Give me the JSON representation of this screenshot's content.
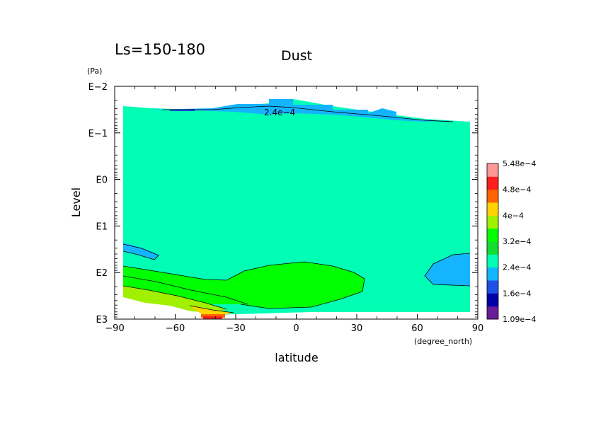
{
  "header": {
    "period_label": "Ls=150-180",
    "title": "Dust"
  },
  "chart_data": {
    "type": "heatmap",
    "title": "Dust",
    "subtitle": "Ls=150-180",
    "xlabel": "latitude",
    "xunit": "(degree_north)",
    "ylabel": "Level",
    "yunit": "(Pa)",
    "xlim": [
      -90,
      90
    ],
    "ylim": [
      1000,
      0.01
    ],
    "yscale": "log",
    "x_ticks": [
      {
        "value": -90,
        "label": "−90"
      },
      {
        "value": -60,
        "label": "−60"
      },
      {
        "value": -30,
        "label": "−30"
      },
      {
        "value": 0,
        "label": "0"
      },
      {
        "value": 30,
        "label": "30"
      },
      {
        "value": 60,
        "label": "60"
      },
      {
        "value": 90,
        "label": "90"
      }
    ],
    "y_ticks": [
      {
        "value": 0.01,
        "label": "E−2"
      },
      {
        "value": 0.1,
        "label": "E−1"
      },
      {
        "value": 1,
        "label": "E0"
      },
      {
        "value": 10,
        "label": "E1"
      },
      {
        "value": 100,
        "label": "E2"
      },
      {
        "value": 1000,
        "label": "E3"
      }
    ],
    "colorbar": {
      "levels": [
        0.000109,
        0.00016,
        0.00024,
        0.00032,
        0.0004,
        0.00048,
        0.000548
      ],
      "labels": [
        "1.09e−4",
        "1.6e−4",
        "2.4e−4",
        "3.2e−4",
        "4e−4",
        "4.8e−4",
        "5.48e−4"
      ],
      "colors": [
        "#6a1b9a",
        "#0000a8",
        "#1e50e6",
        "#14b4ff",
        "#00ffb4",
        "#14dc32",
        "#00ff00",
        "#a0f000",
        "#ffd200",
        "#ff6400",
        "#ff1e1e",
        "#ff9696"
      ]
    },
    "contour_label": "2.4e−4",
    "regions": [
      {
        "band": "2.4e-4 to 3.2e-4",
        "color": "#00ffb4",
        "x_range": [
          -88,
          88
        ],
        "y_range": [
          600,
          0.018
        ]
      },
      {
        "band": "1.6e-4 to 2.4e-4",
        "color": "#14b4ff",
        "x_range": [
          -40,
          25
        ],
        "y_range": [
          0.04,
          0.015
        ]
      },
      {
        "band": "1.6e-4 to 2.4e-4",
        "color": "#14b4ff",
        "x_range": [
          -88,
          -70
        ],
        "y_range": [
          30,
          15
        ]
      },
      {
        "band": "1.6e-4 to 2.4e-4",
        "color": "#14b4ff",
        "x_range": [
          62,
          88
        ],
        "y_range": [
          180,
          60
        ]
      },
      {
        "band": "3.2e-4 to 4e-4",
        "color": "#00ff00",
        "x_range": [
          -88,
          35
        ],
        "y_range": [
          700,
          70
        ]
      },
      {
        "band": "4e-4 to 4.8e-4",
        "color": "#a0f000",
        "x_range": [
          -88,
          -45
        ],
        "y_range": [
          800,
          250
        ]
      },
      {
        "band": "4.8e-4 to 5.48e-4",
        "color": "#ffd200",
        "x_range": [
          -50,
          -30
        ],
        "y_range": [
          1000,
          700
        ]
      },
      {
        "band": ">5.48e-4",
        "color": "#ff1e1e",
        "x_range": [
          -45,
          -35
        ],
        "y_range": [
          1000,
          900
        ]
      }
    ],
    "grid": false,
    "legend_position": "right"
  }
}
